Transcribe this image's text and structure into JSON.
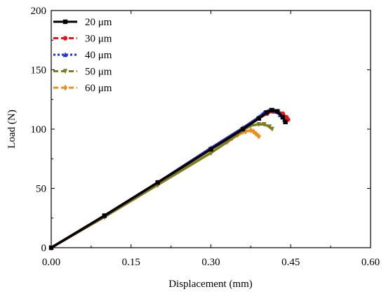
{
  "chart_data": {
    "type": "line",
    "title": "",
    "xlabel": "Displacement (mm)",
    "ylabel": "Load (N)",
    "xlim": [
      0,
      0.6
    ],
    "ylim": [
      0,
      200
    ],
    "xticks": [
      0,
      0.15,
      0.3,
      0.45,
      0.6
    ],
    "xtick_labels": [
      "0.00",
      "0.15",
      "0.30",
      "0.45",
      "0.60"
    ],
    "yticks": [
      0,
      50,
      100,
      150,
      200
    ],
    "ytick_labels": [
      "0",
      "50",
      "100",
      "150",
      "200"
    ],
    "grid": false,
    "legend_position": "top-left",
    "series": [
      {
        "name": "20 μm",
        "color": "#000000",
        "marker": "square",
        "dash": "solid",
        "x": [
          0,
          0.1,
          0.2,
          0.3,
          0.36,
          0.39,
          0.405,
          0.415,
          0.425,
          0.435,
          0.44
        ],
        "y": [
          0,
          27,
          55,
          83,
          100,
          109,
          114,
          116,
          115,
          110,
          106
        ]
      },
      {
        "name": "30 μm",
        "color": "#e8141c",
        "marker": "circle",
        "dash": "dashed",
        "x": [
          0,
          0.1,
          0.2,
          0.3,
          0.36,
          0.39,
          0.405,
          0.415,
          0.425,
          0.435,
          0.442,
          0.445
        ],
        "y": [
          0,
          27,
          55,
          83,
          100,
          109,
          113,
          115,
          115,
          113,
          110,
          108
        ]
      },
      {
        "name": "40 μm",
        "color": "#1a2ee8",
        "marker": "triangle-up",
        "dash": "dotted",
        "x": [
          0,
          0.1,
          0.2,
          0.3,
          0.36,
          0.39,
          0.4,
          0.41,
          0.42,
          0.43,
          0.438
        ],
        "y": [
          0,
          27,
          55,
          84,
          101,
          110,
          114,
          116,
          115,
          112,
          108
        ]
      },
      {
        "name": "50 μm",
        "color": "#7d7d1c",
        "marker": "triangle-down",
        "dash": "dashed",
        "x": [
          0,
          0.1,
          0.2,
          0.3,
          0.34,
          0.36,
          0.375,
          0.39,
          0.4,
          0.41,
          0.415
        ],
        "y": [
          0,
          26,
          53,
          80,
          92,
          99,
          103,
          104,
          104,
          102,
          100
        ]
      },
      {
        "name": "60 μm",
        "color": "#f08c1c",
        "marker": "diamond",
        "dash": "dashed",
        "x": [
          0,
          0.1,
          0.2,
          0.3,
          0.33,
          0.35,
          0.365,
          0.375,
          0.38,
          0.385,
          0.39
        ],
        "y": [
          0,
          26,
          53,
          80,
          89,
          95,
          98,
          99,
          98,
          96,
          94
        ]
      }
    ]
  }
}
